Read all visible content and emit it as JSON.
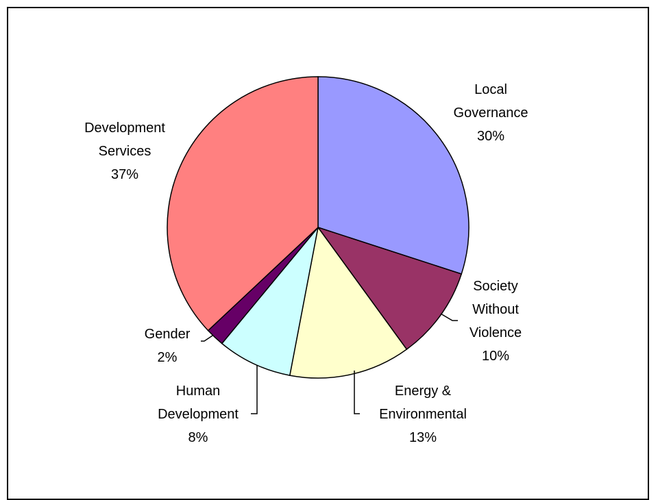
{
  "chart_data": {
    "type": "pie",
    "title": "",
    "slices": [
      {
        "label_lines": [
          "Local",
          "Governance"
        ],
        "pct_label": "30%",
        "value": 30,
        "color": "#9999FF"
      },
      {
        "label_lines": [
          "Society",
          "Without",
          "Violence"
        ],
        "pct_label": "10%",
        "value": 10,
        "color": "#993366"
      },
      {
        "label_lines": [
          "Energy &",
          "Environmental"
        ],
        "pct_label": "13%",
        "value": 13,
        "color": "#FFFFCC"
      },
      {
        "label_lines": [
          "Human",
          "Development"
        ],
        "pct_label": "8%",
        "value": 8,
        "color": "#CCFFFF"
      },
      {
        "label_lines": [
          "Gender"
        ],
        "pct_label": "2%",
        "value": 2,
        "color": "#660066"
      },
      {
        "label_lines": [
          "Development",
          "Services"
        ],
        "pct_label": "37%",
        "value": 37,
        "color": "#FF8080"
      }
    ],
    "legend": "none",
    "data_labels": "outside, category name and percentage"
  }
}
